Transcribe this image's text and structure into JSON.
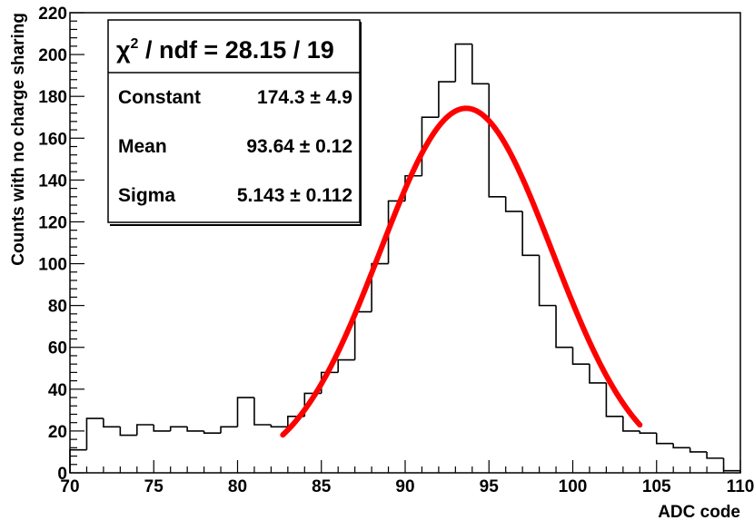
{
  "chart_data": {
    "type": "histogram",
    "xlabel": "ADC code",
    "ylabel": "Counts with no charge sharing",
    "xlim": [
      70,
      110
    ],
    "ylim": [
      0,
      220
    ],
    "x_ticks": [
      70,
      75,
      80,
      85,
      90,
      95,
      100,
      105,
      110
    ],
    "y_ticks": [
      0,
      20,
      40,
      60,
      80,
      100,
      120,
      140,
      160,
      180,
      200,
      220
    ],
    "bin_width": 1,
    "bins_start": 70,
    "values": [
      11,
      26,
      22,
      18,
      23,
      20,
      22,
      20,
      19,
      22,
      36,
      23,
      22,
      27,
      38,
      48,
      54,
      77,
      100,
      130,
      142,
      170,
      187,
      205,
      186,
      132,
      125,
      104,
      80,
      60,
      52,
      43,
      27,
      20,
      19,
      14,
      12,
      10,
      7,
      1
    ],
    "fit": {
      "function": "gaus",
      "color": "#ff0000",
      "x_range": [
        82.7,
        104
      ]
    },
    "stats": {
      "chi2_ndf": "28.15 / 19",
      "constant": "174.3 ± 4.9",
      "mean": "93.64 ± 0.12",
      "sigma": "5.143 ± 0.112"
    },
    "grid": false,
    "legend_position": "top-left"
  },
  "labels": {
    "chi_symbol": "χ",
    "chi_sup": "2",
    "chi_rest": " / ndf = ",
    "constant_label": "Constant",
    "mean_label": "Mean",
    "sigma_label": "Sigma"
  }
}
